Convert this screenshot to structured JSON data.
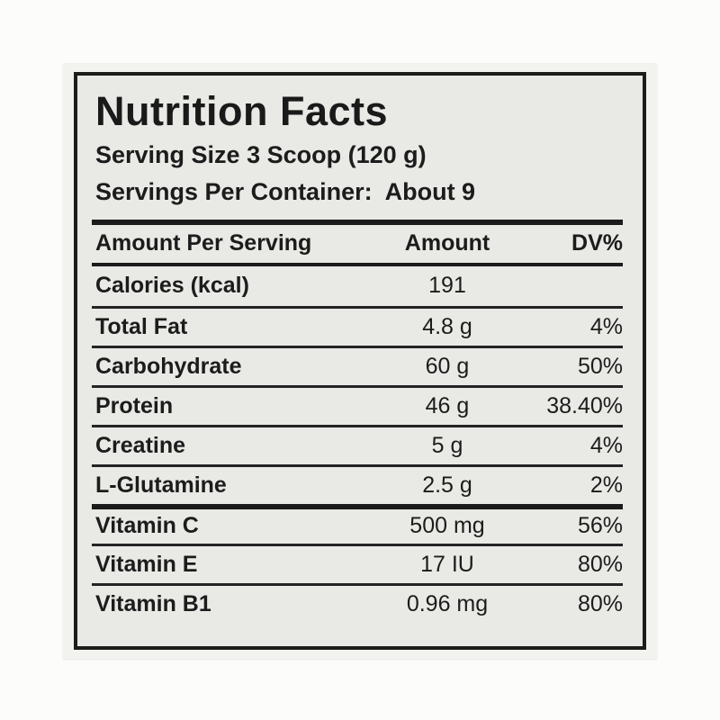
{
  "label": {
    "title": "Nutrition Facts",
    "serving_size": "Serving Size 3 Scoop (120 g)",
    "servings_per_container": "Servings Per Container:  About 9",
    "table": {
      "headers": [
        "Amount Per Serving",
        "Amount",
        "DV%"
      ],
      "rows": [
        {
          "name": "Calories (kcal)",
          "amount": "191",
          "dv": ""
        },
        {
          "name": "Total Fat",
          "amount": "4.8 g",
          "dv": "4%"
        },
        {
          "name": "Carbohydrate",
          "amount": "60 g",
          "dv": "50%"
        },
        {
          "name": "Protein",
          "amount": "46 g",
          "dv": "38.40%"
        },
        {
          "name": "Creatine",
          "amount": "5 g",
          "dv": "4%"
        },
        {
          "name": "L-Glutamine",
          "amount": "2.5 g",
          "dv": "2%"
        },
        {
          "name": "Vitamin C",
          "amount": "500 mg",
          "dv": "56%"
        },
        {
          "name": "Vitamin E",
          "amount": "17 IU",
          "dv": "80%"
        },
        {
          "name": "Vitamin B1",
          "amount": "0.96 mg",
          "dv": "80%"
        }
      ]
    },
    "colors": {
      "label_bg": "#e9e9e6",
      "sticker_bg": "#f2f2ef",
      "border": "#1d1d1b",
      "text": "#1c1c1c"
    }
  }
}
